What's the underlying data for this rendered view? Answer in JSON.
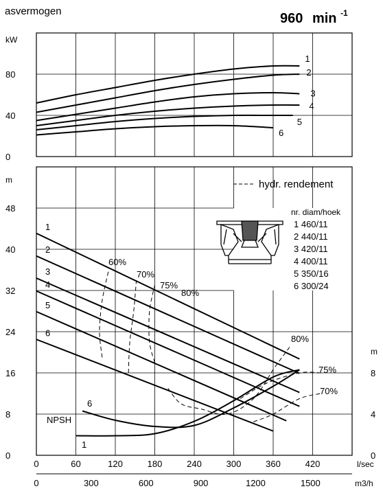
{
  "header": {
    "title": "asvermogen",
    "speed_value": "960",
    "speed_unit": "min",
    "speed_exp": "-1"
  },
  "legend": {
    "dashed_label": "hydr. rendement",
    "table_header": "nr. diam/hoek",
    "rows": [
      "1  460/11",
      "2  440/11",
      "3  420/11",
      "4  400/11",
      "5  350/16",
      "6  300/24"
    ]
  },
  "axes": {
    "power_unit": "kW",
    "power_ticks": [
      "0",
      "40",
      "80"
    ],
    "head_unit": "m",
    "head_ticks": [
      "0",
      "8",
      "16",
      "24",
      "32",
      "40",
      "48"
    ],
    "npsh_unit": "m",
    "npsh_ticks": [
      "0",
      "4",
      "8"
    ],
    "flow_lsec_unit": "l/sec",
    "flow_lsec_ticks": [
      "0",
      "60",
      "120",
      "180",
      "240",
      "300",
      "360",
      "420"
    ],
    "flow_m3h_unit": "m3/h",
    "flow_m3h_ticks": [
      "0",
      "300",
      "600",
      "900",
      "1200",
      "1500"
    ],
    "npsh_label": "NPSH"
  },
  "chart_data": [
    {
      "type": "line",
      "title": "asvermogen",
      "xlabel": "l/sec",
      "ylabel": "kW",
      "xlim": [
        0,
        480
      ],
      "ylim": [
        0,
        120
      ],
      "grid": true,
      "series": [
        {
          "name": "1",
          "points": [
            [
              0,
              52
            ],
            [
              60,
              60
            ],
            [
              120,
              67
            ],
            [
              180,
              74
            ],
            [
              240,
              80
            ],
            [
              300,
              85
            ],
            [
              360,
              88
            ],
            [
              400,
              88
            ]
          ]
        },
        {
          "name": "2",
          "points": [
            [
              0,
              43
            ],
            [
              60,
              50
            ],
            [
              120,
              57
            ],
            [
              180,
              64
            ],
            [
              240,
              70
            ],
            [
              300,
              75
            ],
            [
              360,
              79
            ],
            [
              400,
              80
            ]
          ]
        },
        {
          "name": "3",
          "points": [
            [
              0,
              35
            ],
            [
              60,
              41
            ],
            [
              120,
              47
            ],
            [
              180,
              53
            ],
            [
              240,
              58
            ],
            [
              300,
              61
            ],
            [
              360,
              62
            ],
            [
              400,
              61
            ]
          ]
        },
        {
          "name": "4",
          "points": [
            [
              0,
              30
            ],
            [
              60,
              35
            ],
            [
              120,
              40
            ],
            [
              180,
              44
            ],
            [
              240,
              47
            ],
            [
              300,
              49
            ],
            [
              360,
              50
            ],
            [
              400,
              50
            ]
          ]
        },
        {
          "name": "5",
          "points": [
            [
              0,
              26
            ],
            [
              60,
              30
            ],
            [
              120,
              34
            ],
            [
              180,
              37
            ],
            [
              240,
              39
            ],
            [
              300,
              40
            ],
            [
              360,
              40
            ],
            [
              390,
              40
            ]
          ]
        },
        {
          "name": "6",
          "points": [
            [
              0,
              21
            ],
            [
              60,
              24
            ],
            [
              120,
              27
            ],
            [
              180,
              29
            ],
            [
              240,
              30
            ],
            [
              300,
              30
            ],
            [
              360,
              28
            ]
          ]
        }
      ]
    },
    {
      "type": "line",
      "xlabel": "l/sec",
      "ylabel": "m",
      "xlim": [
        0,
        480
      ],
      "ylim": [
        0,
        56
      ],
      "y2label": "m",
      "y2lim": [
        0,
        28
      ],
      "grid": true,
      "series": [
        {
          "name": "1",
          "points": [
            [
              0,
              43.1
            ],
            [
              400,
              18.7
            ]
          ]
        },
        {
          "name": "2",
          "points": [
            [
              0,
              38.7
            ],
            [
              400,
              15.9
            ]
          ]
        },
        {
          "name": "3",
          "points": [
            [
              0,
              34.4
            ],
            [
              400,
              12.2
            ]
          ]
        },
        {
          "name": "4",
          "points": [
            [
              0,
              31.9
            ],
            [
              400,
              9.5
            ]
          ]
        },
        {
          "name": "5",
          "points": [
            [
              0,
              27.9
            ],
            [
              380,
              6.7
            ]
          ]
        },
        {
          "name": "6",
          "points": [
            [
              0,
              22.5
            ],
            [
              360,
              4.7
            ]
          ]
        },
        {
          "name": "NPSH 1",
          "axis": "y2",
          "points": [
            [
              60,
              1.9
            ],
            [
              120,
              1.9
            ],
            [
              180,
              2.1
            ],
            [
              240,
              3.3
            ],
            [
              300,
              5.3
            ],
            [
              360,
              7.6
            ],
            [
              400,
              8.3
            ]
          ]
        },
        {
          "name": "NPSH 6",
          "axis": "y2",
          "points": [
            [
              70,
              4.3
            ],
            [
              120,
              3.4
            ],
            [
              180,
              2.8
            ],
            [
              240,
              2.9
            ],
            [
              300,
              4.6
            ],
            [
              360,
              6.7
            ],
            [
              400,
              8.3
            ]
          ]
        }
      ],
      "efficiency_contours": [
        {
          "name": "60%",
          "points": [
            [
              100,
              19
            ],
            [
              96,
              24
            ],
            [
              100,
              30
            ],
            [
              110,
              36
            ]
          ]
        },
        {
          "name": "70%",
          "points": [
            [
              140,
              16
            ],
            [
              142,
              22
            ],
            [
              148,
              28
            ],
            [
              152,
              34
            ]
          ]
        },
        {
          "name": "75%",
          "points": [
            [
              180,
              18
            ],
            [
              172,
              22
            ],
            [
              172,
              28
            ],
            [
              180,
              33
            ]
          ]
        },
        {
          "name": "80%",
          "points": [
            [
              200,
              13
            ],
            [
              220,
              10
            ],
            [
              250,
              9
            ],
            [
              290,
              8
            ],
            [
              330,
              11
            ],
            [
              362,
              17
            ],
            [
              385,
              21
            ]
          ]
        },
        {
          "name": "75%",
          "points": [
            [
              310,
              11
            ],
            [
              350,
              14
            ],
            [
              400,
              16
            ],
            [
              432,
              16
            ]
          ]
        },
        {
          "name": "70%",
          "points": [
            [
              330,
              6.5
            ],
            [
              360,
              8
            ],
            [
              400,
              11
            ],
            [
              432,
              12
            ]
          ]
        }
      ],
      "annotations": [
        "60%",
        "70%",
        "75%",
        "80%",
        "80%",
        "75%",
        "70%"
      ]
    }
  ]
}
